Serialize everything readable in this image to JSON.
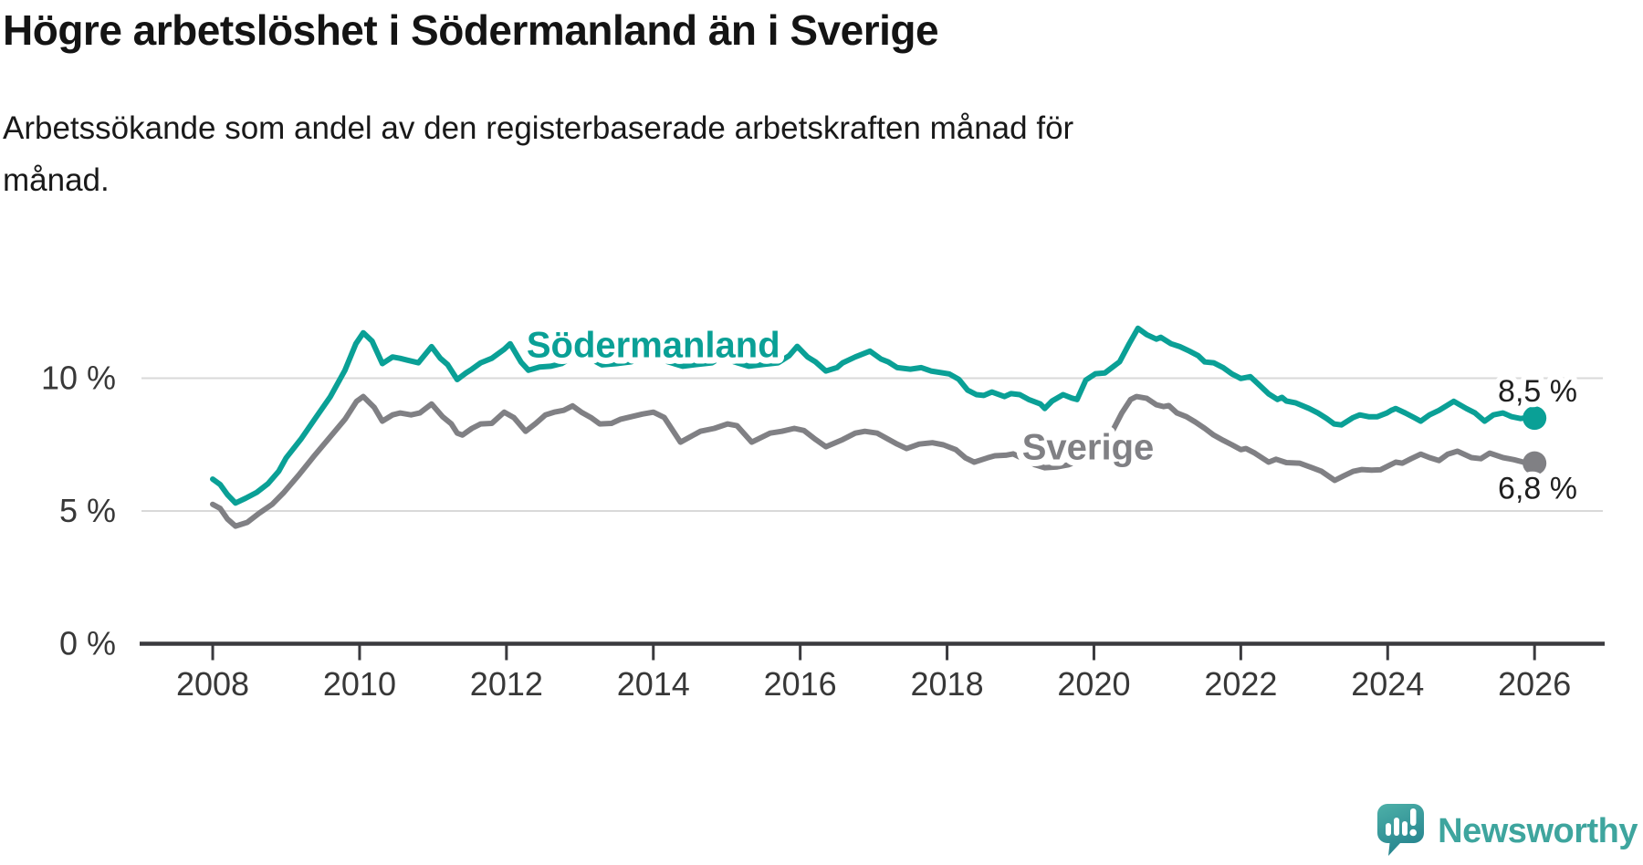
{
  "footer": {
    "brand": "Newsworthy"
  },
  "chart_data": {
    "type": "line",
    "title": "Högre arbetslöshet i Södermanland än i Sverige",
    "subtitle_lines": [
      "Arbetssökande som andel av den registerbaserade arbetskraften månad för",
      "månad."
    ],
    "grid": true,
    "legend_position": "inline",
    "x": {
      "min": 2007.03,
      "max": 2026.93,
      "ticks": [
        {
          "v": 2008,
          "label": "2008"
        },
        {
          "v": 2010,
          "label": "2010"
        },
        {
          "v": 2012,
          "label": "2012"
        },
        {
          "v": 2014,
          "label": "2014"
        },
        {
          "v": 2016,
          "label": "2016"
        },
        {
          "v": 2018,
          "label": "2018"
        },
        {
          "v": 2020,
          "label": "2020"
        },
        {
          "v": 2022,
          "label": "2022"
        },
        {
          "v": 2024,
          "label": "2024"
        },
        {
          "v": 2026,
          "label": "2026"
        }
      ]
    },
    "y": {
      "min": 0,
      "max": 14.3,
      "unit": "%",
      "ticks": [
        {
          "v": 0,
          "label": "0 %"
        },
        {
          "v": 5,
          "label": "5 %"
        },
        {
          "v": 10,
          "label": "10 %"
        }
      ]
    },
    "series": [
      {
        "name": "Sverige",
        "color": "#808084",
        "end_label": "6,8 %",
        "end_label_side": "below",
        "latest_value": 6.8,
        "inline_label": {
          "year": 2019.92,
          "value": 7.42
        },
        "points": [
          [
            2008.0,
            5.25
          ],
          [
            2008.1,
            5.1
          ],
          [
            2008.2,
            4.7
          ],
          [
            2008.31,
            4.43
          ],
          [
            2008.47,
            4.57
          ],
          [
            2008.63,
            4.91
          ],
          [
            2008.81,
            5.25
          ],
          [
            2008.97,
            5.7
          ],
          [
            2009.18,
            6.38
          ],
          [
            2009.38,
            7.07
          ],
          [
            2009.59,
            7.76
          ],
          [
            2009.8,
            8.45
          ],
          [
            2009.96,
            9.13
          ],
          [
            2010.05,
            9.31
          ],
          [
            2010.2,
            8.9
          ],
          [
            2010.31,
            8.38
          ],
          [
            2010.45,
            8.62
          ],
          [
            2010.55,
            8.69
          ],
          [
            2010.7,
            8.62
          ],
          [
            2010.82,
            8.69
          ],
          [
            2010.98,
            9.03
          ],
          [
            2011.13,
            8.55
          ],
          [
            2011.25,
            8.28
          ],
          [
            2011.33,
            7.93
          ],
          [
            2011.4,
            7.86
          ],
          [
            2011.53,
            8.11
          ],
          [
            2011.65,
            8.28
          ],
          [
            2011.8,
            8.3
          ],
          [
            2011.97,
            8.72
          ],
          [
            2012.1,
            8.52
          ],
          [
            2012.26,
            8.0
          ],
          [
            2012.4,
            8.3
          ],
          [
            2012.53,
            8.62
          ],
          [
            2012.65,
            8.72
          ],
          [
            2012.78,
            8.79
          ],
          [
            2012.9,
            8.96
          ],
          [
            2013.02,
            8.72
          ],
          [
            2013.15,
            8.52
          ],
          [
            2013.27,
            8.28
          ],
          [
            2013.43,
            8.3
          ],
          [
            2013.55,
            8.45
          ],
          [
            2013.7,
            8.55
          ],
          [
            2013.85,
            8.65
          ],
          [
            2014.0,
            8.72
          ],
          [
            2014.15,
            8.52
          ],
          [
            2014.37,
            7.59
          ],
          [
            2014.64,
            8.0
          ],
          [
            2014.83,
            8.11
          ],
          [
            2015.01,
            8.28
          ],
          [
            2015.14,
            8.21
          ],
          [
            2015.34,
            7.59
          ],
          [
            2015.59,
            7.93
          ],
          [
            2015.75,
            8.0
          ],
          [
            2015.92,
            8.11
          ],
          [
            2016.05,
            8.03
          ],
          [
            2016.21,
            7.69
          ],
          [
            2016.35,
            7.42
          ],
          [
            2016.58,
            7.69
          ],
          [
            2016.75,
            7.93
          ],
          [
            2016.88,
            8.0
          ],
          [
            2017.05,
            7.93
          ],
          [
            2017.32,
            7.52
          ],
          [
            2017.45,
            7.35
          ],
          [
            2017.62,
            7.52
          ],
          [
            2017.8,
            7.57
          ],
          [
            2017.95,
            7.49
          ],
          [
            2018.12,
            7.31
          ],
          [
            2018.25,
            7.0
          ],
          [
            2018.37,
            6.84
          ],
          [
            2018.55,
            7.0
          ],
          [
            2018.65,
            7.08
          ],
          [
            2018.8,
            7.1
          ],
          [
            2018.9,
            7.15
          ],
          [
            2019.05,
            6.95
          ],
          [
            2019.2,
            6.74
          ],
          [
            2019.33,
            6.63
          ],
          [
            2019.5,
            6.66
          ],
          [
            2019.65,
            6.74
          ],
          [
            2019.8,
            6.9
          ],
          [
            2019.95,
            7.2
          ],
          [
            2020.1,
            7.42
          ],
          [
            2020.25,
            8.0
          ],
          [
            2020.38,
            8.69
          ],
          [
            2020.5,
            9.2
          ],
          [
            2020.58,
            9.31
          ],
          [
            2020.72,
            9.24
          ],
          [
            2020.85,
            9.0
          ],
          [
            2020.95,
            8.93
          ],
          [
            2021.02,
            8.97
          ],
          [
            2021.13,
            8.69
          ],
          [
            2021.26,
            8.55
          ],
          [
            2021.38,
            8.35
          ],
          [
            2021.51,
            8.11
          ],
          [
            2021.63,
            7.86
          ],
          [
            2021.76,
            7.66
          ],
          [
            2021.88,
            7.49
          ],
          [
            2022.0,
            7.31
          ],
          [
            2022.07,
            7.35
          ],
          [
            2022.19,
            7.18
          ],
          [
            2022.38,
            6.84
          ],
          [
            2022.48,
            6.95
          ],
          [
            2022.62,
            6.82
          ],
          [
            2022.8,
            6.8
          ],
          [
            2022.97,
            6.63
          ],
          [
            2023.1,
            6.49
          ],
          [
            2023.28,
            6.15
          ],
          [
            2023.4,
            6.32
          ],
          [
            2023.53,
            6.49
          ],
          [
            2023.65,
            6.56
          ],
          [
            2023.78,
            6.54
          ],
          [
            2023.9,
            6.55
          ],
          [
            2024.03,
            6.73
          ],
          [
            2024.11,
            6.84
          ],
          [
            2024.2,
            6.8
          ],
          [
            2024.32,
            6.97
          ],
          [
            2024.45,
            7.14
          ],
          [
            2024.57,
            7.01
          ],
          [
            2024.7,
            6.9
          ],
          [
            2024.82,
            7.14
          ],
          [
            2024.95,
            7.25
          ],
          [
            2025.14,
            7.01
          ],
          [
            2025.27,
            6.97
          ],
          [
            2025.39,
            7.18
          ],
          [
            2025.57,
            7.01
          ],
          [
            2025.72,
            6.93
          ],
          [
            2025.85,
            6.84
          ],
          [
            2026.0,
            6.8
          ]
        ]
      },
      {
        "name": "Södermanland",
        "color": "#0aa096",
        "end_label": "8,5 %",
        "end_label_side": "above",
        "latest_value": 8.5,
        "inline_label": {
          "year": 2014.0,
          "value": 11.27
        },
        "points": [
          [
            2008.0,
            6.2
          ],
          [
            2008.1,
            6.0
          ],
          [
            2008.2,
            5.62
          ],
          [
            2008.31,
            5.3
          ],
          [
            2008.45,
            5.48
          ],
          [
            2008.6,
            5.7
          ],
          [
            2008.75,
            6.02
          ],
          [
            2008.9,
            6.5
          ],
          [
            2009.0,
            7.0
          ],
          [
            2009.2,
            7.7
          ],
          [
            2009.4,
            8.5
          ],
          [
            2009.6,
            9.3
          ],
          [
            2009.8,
            10.3
          ],
          [
            2009.95,
            11.3
          ],
          [
            2010.05,
            11.71
          ],
          [
            2010.17,
            11.4
          ],
          [
            2010.31,
            10.55
          ],
          [
            2010.45,
            10.8
          ],
          [
            2010.55,
            10.75
          ],
          [
            2010.65,
            10.68
          ],
          [
            2010.8,
            10.58
          ],
          [
            2010.98,
            11.19
          ],
          [
            2011.1,
            10.75
          ],
          [
            2011.2,
            10.51
          ],
          [
            2011.33,
            9.95
          ],
          [
            2011.45,
            10.2
          ],
          [
            2011.53,
            10.34
          ],
          [
            2011.65,
            10.58
          ],
          [
            2011.8,
            10.75
          ],
          [
            2011.97,
            11.09
          ],
          [
            2012.05,
            11.3
          ],
          [
            2012.2,
            10.6
          ],
          [
            2012.3,
            10.3
          ],
          [
            2012.45,
            10.42
          ],
          [
            2012.6,
            10.45
          ],
          [
            2012.75,
            10.55
          ],
          [
            2012.9,
            10.8
          ],
          [
            2013.0,
            11.0
          ],
          [
            2013.15,
            10.72
          ],
          [
            2013.3,
            10.5
          ],
          [
            2013.5,
            10.55
          ],
          [
            2013.7,
            10.62
          ],
          [
            2013.85,
            10.8
          ],
          [
            2014.0,
            11.0
          ],
          [
            2014.2,
            10.62
          ],
          [
            2014.4,
            10.45
          ],
          [
            2014.6,
            10.52
          ],
          [
            2014.8,
            10.58
          ],
          [
            2014.95,
            10.85
          ],
          [
            2015.1,
            10.62
          ],
          [
            2015.3,
            10.45
          ],
          [
            2015.5,
            10.52
          ],
          [
            2015.7,
            10.58
          ],
          [
            2015.85,
            10.85
          ],
          [
            2015.96,
            11.2
          ],
          [
            2016.1,
            10.8
          ],
          [
            2016.21,
            10.61
          ],
          [
            2016.35,
            10.27
          ],
          [
            2016.5,
            10.4
          ],
          [
            2016.58,
            10.58
          ],
          [
            2016.75,
            10.8
          ],
          [
            2016.95,
            11.02
          ],
          [
            2017.1,
            10.72
          ],
          [
            2017.2,
            10.61
          ],
          [
            2017.32,
            10.4
          ],
          [
            2017.5,
            10.34
          ],
          [
            2017.65,
            10.4
          ],
          [
            2017.78,
            10.27
          ],
          [
            2018.03,
            10.16
          ],
          [
            2018.16,
            9.96
          ],
          [
            2018.28,
            9.55
          ],
          [
            2018.4,
            9.38
          ],
          [
            2018.5,
            9.35
          ],
          [
            2018.61,
            9.48
          ],
          [
            2018.78,
            9.31
          ],
          [
            2018.87,
            9.42
          ],
          [
            2018.99,
            9.38
          ],
          [
            2019.11,
            9.2
          ],
          [
            2019.27,
            9.03
          ],
          [
            2019.33,
            8.86
          ],
          [
            2019.43,
            9.14
          ],
          [
            2019.58,
            9.38
          ],
          [
            2019.7,
            9.25
          ],
          [
            2019.77,
            9.2
          ],
          [
            2019.89,
            9.93
          ],
          [
            2020.02,
            10.17
          ],
          [
            2020.15,
            10.2
          ],
          [
            2020.35,
            10.62
          ],
          [
            2020.48,
            11.3
          ],
          [
            2020.6,
            11.88
          ],
          [
            2020.72,
            11.64
          ],
          [
            2020.85,
            11.47
          ],
          [
            2020.91,
            11.54
          ],
          [
            2021.05,
            11.3
          ],
          [
            2021.17,
            11.19
          ],
          [
            2021.3,
            11.02
          ],
          [
            2021.42,
            10.85
          ],
          [
            2021.51,
            10.61
          ],
          [
            2021.63,
            10.58
          ],
          [
            2021.76,
            10.4
          ],
          [
            2021.88,
            10.16
          ],
          [
            2022.0,
            9.99
          ],
          [
            2022.13,
            10.06
          ],
          [
            2022.25,
            9.75
          ],
          [
            2022.38,
            9.41
          ],
          [
            2022.5,
            9.2
          ],
          [
            2022.56,
            9.28
          ],
          [
            2022.62,
            9.14
          ],
          [
            2022.75,
            9.07
          ],
          [
            2022.93,
            8.86
          ],
          [
            2023.05,
            8.69
          ],
          [
            2023.17,
            8.48
          ],
          [
            2023.27,
            8.28
          ],
          [
            2023.37,
            8.24
          ],
          [
            2023.53,
            8.52
          ],
          [
            2023.62,
            8.62
          ],
          [
            2023.74,
            8.55
          ],
          [
            2023.86,
            8.55
          ],
          [
            2023.99,
            8.69
          ],
          [
            2024.05,
            8.79
          ],
          [
            2024.11,
            8.86
          ],
          [
            2024.24,
            8.69
          ],
          [
            2024.36,
            8.52
          ],
          [
            2024.45,
            8.38
          ],
          [
            2024.57,
            8.62
          ],
          [
            2024.7,
            8.79
          ],
          [
            2024.9,
            9.13
          ],
          [
            2025.07,
            8.86
          ],
          [
            2025.19,
            8.69
          ],
          [
            2025.32,
            8.38
          ],
          [
            2025.44,
            8.62
          ],
          [
            2025.57,
            8.69
          ],
          [
            2025.69,
            8.55
          ],
          [
            2025.81,
            8.48
          ],
          [
            2025.91,
            8.52
          ],
          [
            2026.0,
            8.5
          ]
        ]
      }
    ]
  }
}
